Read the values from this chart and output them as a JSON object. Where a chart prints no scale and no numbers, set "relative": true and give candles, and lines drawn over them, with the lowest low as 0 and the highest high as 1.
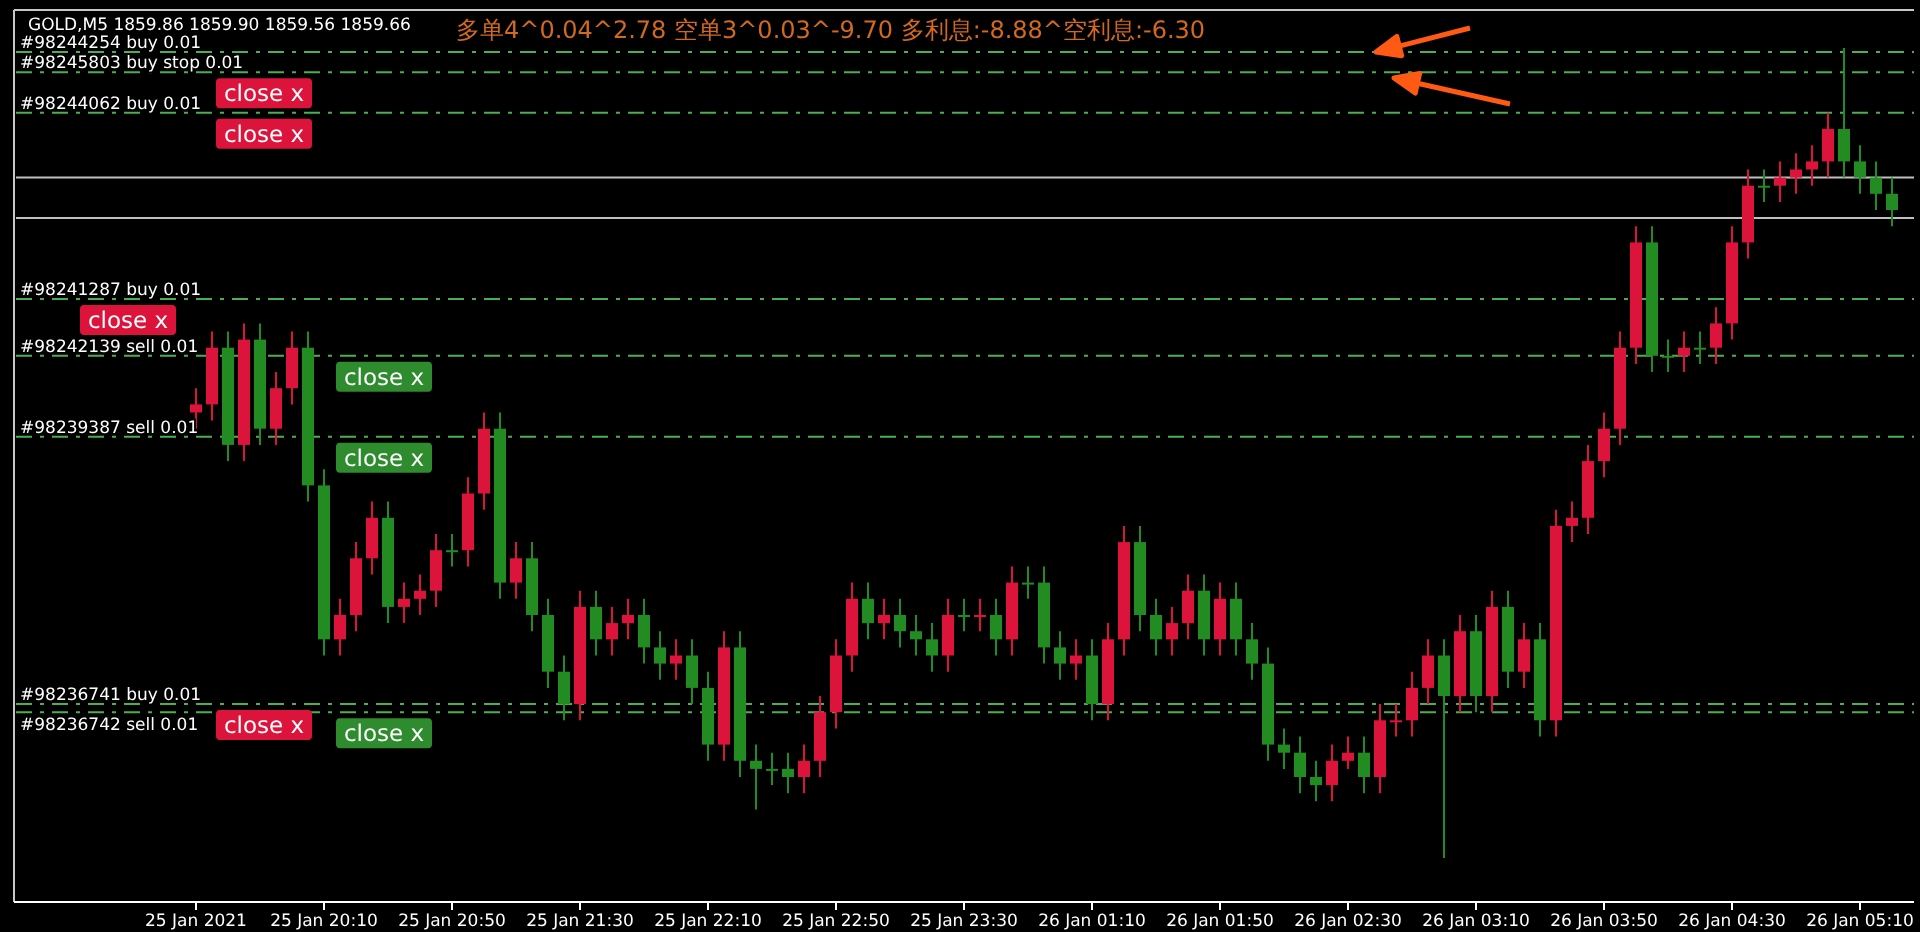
{
  "chart_data": {
    "type": "candlestick",
    "title": "GOLD,M5  1859.86 1859.90 1859.56 1859.66",
    "subtitle": "多单4^0.04^2.78  空单3^0.03^-9.70  多利息:-8.88^空利息:-6.30",
    "relative": true,
    "categories": [
      "25 Jan 2021",
      null,
      null,
      null,
      null,
      null,
      null,
      null,
      "25 Jan 20:10",
      null,
      null,
      null,
      null,
      null,
      null,
      null,
      "25 Jan 20:50",
      null,
      null,
      null,
      null,
      null,
      null,
      null,
      "25 Jan 21:30",
      null,
      null,
      null,
      null,
      null,
      null,
      null,
      "25 Jan 22:10",
      null,
      null,
      null,
      null,
      null,
      null,
      null,
      "25 Jan 22:50",
      null,
      null,
      null,
      null,
      null,
      null,
      null,
      "25 Jan 23:30",
      null,
      null,
      null,
      null,
      null,
      null,
      null,
      "26 Jan 01:10",
      null,
      null,
      null,
      null,
      null,
      null,
      null,
      "26 Jan 01:50",
      null,
      null,
      null,
      null,
      null,
      null,
      null,
      "26 Jan 02:30",
      null,
      null,
      null,
      null,
      null,
      null,
      null,
      "26 Jan 03:10",
      null,
      null,
      null,
      null,
      null,
      null,
      null,
      "26 Jan 03:50",
      null,
      null,
      null,
      null,
      null,
      null,
      null,
      "26 Jan 04:30",
      null,
      null,
      null,
      null,
      null,
      null,
      null,
      "26 Jan 05:10",
      null,
      null
    ],
    "ohlc": [
      [
        0.55,
        0.58,
        0.53,
        0.56
      ],
      [
        0.56,
        0.65,
        0.54,
        0.63
      ],
      [
        0.63,
        0.65,
        0.49,
        0.51
      ],
      [
        0.51,
        0.66,
        0.49,
        0.64
      ],
      [
        0.64,
        0.66,
        0.51,
        0.53
      ],
      [
        0.53,
        0.6,
        0.51,
        0.58
      ],
      [
        0.58,
        0.65,
        0.56,
        0.63
      ],
      [
        0.63,
        0.65,
        0.44,
        0.46
      ],
      [
        0.46,
        0.48,
        0.25,
        0.27
      ],
      [
        0.27,
        0.32,
        0.25,
        0.3
      ],
      [
        0.3,
        0.39,
        0.28,
        0.37
      ],
      [
        0.37,
        0.44,
        0.35,
        0.42
      ],
      [
        0.42,
        0.44,
        0.29,
        0.31
      ],
      [
        0.31,
        0.34,
        0.29,
        0.32
      ],
      [
        0.32,
        0.35,
        0.3,
        0.33
      ],
      [
        0.33,
        0.4,
        0.31,
        0.38
      ],
      [
        0.38,
        0.4,
        0.36,
        0.38
      ],
      [
        0.38,
        0.47,
        0.36,
        0.45
      ],
      [
        0.45,
        0.55,
        0.43,
        0.53
      ],
      [
        0.53,
        0.55,
        0.32,
        0.34
      ],
      [
        0.34,
        0.39,
        0.32,
        0.37
      ],
      [
        0.37,
        0.39,
        0.28,
        0.3
      ],
      [
        0.3,
        0.32,
        0.21,
        0.23
      ],
      [
        0.23,
        0.25,
        0.17,
        0.19
      ],
      [
        0.19,
        0.33,
        0.17,
        0.31
      ],
      [
        0.31,
        0.33,
        0.25,
        0.27
      ],
      [
        0.27,
        0.31,
        0.25,
        0.29
      ],
      [
        0.29,
        0.32,
        0.27,
        0.3
      ],
      [
        0.3,
        0.32,
        0.24,
        0.26
      ],
      [
        0.26,
        0.28,
        0.22,
        0.24
      ],
      [
        0.24,
        0.27,
        0.22,
        0.25
      ],
      [
        0.25,
        0.27,
        0.19,
        0.21
      ],
      [
        0.21,
        0.23,
        0.12,
        0.14
      ],
      [
        0.14,
        0.28,
        0.12,
        0.26
      ],
      [
        0.26,
        0.28,
        0.1,
        0.12
      ],
      [
        0.12,
        0.14,
        0.06,
        0.11
      ],
      [
        0.11,
        0.13,
        0.09,
        0.11
      ],
      [
        0.11,
        0.13,
        0.08,
        0.1
      ],
      [
        0.1,
        0.14,
        0.08,
        0.12
      ],
      [
        0.12,
        0.2,
        0.1,
        0.18
      ],
      [
        0.18,
        0.27,
        0.16,
        0.25
      ],
      [
        0.25,
        0.34,
        0.23,
        0.32
      ],
      [
        0.32,
        0.34,
        0.27,
        0.29
      ],
      [
        0.29,
        0.32,
        0.27,
        0.3
      ],
      [
        0.3,
        0.32,
        0.26,
        0.28
      ],
      [
        0.28,
        0.3,
        0.25,
        0.27
      ],
      [
        0.27,
        0.29,
        0.23,
        0.25
      ],
      [
        0.25,
        0.32,
        0.23,
        0.3
      ],
      [
        0.3,
        0.32,
        0.28,
        0.3
      ],
      [
        0.3,
        0.32,
        0.28,
        0.3
      ],
      [
        0.3,
        0.32,
        0.25,
        0.27
      ],
      [
        0.27,
        0.36,
        0.25,
        0.34
      ],
      [
        0.34,
        0.36,
        0.32,
        0.34
      ],
      [
        0.34,
        0.36,
        0.24,
        0.26
      ],
      [
        0.26,
        0.28,
        0.22,
        0.24
      ],
      [
        0.24,
        0.27,
        0.22,
        0.25
      ],
      [
        0.25,
        0.27,
        0.17,
        0.19
      ],
      [
        0.19,
        0.29,
        0.17,
        0.27
      ],
      [
        0.27,
        0.41,
        0.25,
        0.39
      ],
      [
        0.39,
        0.41,
        0.28,
        0.3
      ],
      [
        0.3,
        0.32,
        0.25,
        0.27
      ],
      [
        0.27,
        0.31,
        0.25,
        0.29
      ],
      [
        0.29,
        0.35,
        0.27,
        0.33
      ],
      [
        0.33,
        0.35,
        0.25,
        0.27
      ],
      [
        0.27,
        0.34,
        0.25,
        0.32
      ],
      [
        0.32,
        0.34,
        0.25,
        0.27
      ],
      [
        0.27,
        0.29,
        0.22,
        0.24
      ],
      [
        0.24,
        0.26,
        0.12,
        0.14
      ],
      [
        0.14,
        0.16,
        0.11,
        0.13
      ],
      [
        0.13,
        0.15,
        0.08,
        0.1
      ],
      [
        0.1,
        0.12,
        0.07,
        0.09
      ],
      [
        0.09,
        0.14,
        0.07,
        0.12
      ],
      [
        0.12,
        0.15,
        0.11,
        0.13
      ],
      [
        0.13,
        0.15,
        0.08,
        0.1
      ],
      [
        0.1,
        0.19,
        0.08,
        0.17
      ],
      [
        0.17,
        0.19,
        0.15,
        0.17
      ],
      [
        0.17,
        0.23,
        0.15,
        0.21
      ],
      [
        0.21,
        0.27,
        0.19,
        0.25
      ],
      [
        0.25,
        0.27,
        0.0,
        0.2
      ],
      [
        0.2,
        0.3,
        0.18,
        0.28
      ],
      [
        0.28,
        0.3,
        0.18,
        0.2
      ],
      [
        0.2,
        0.33,
        0.18,
        0.31
      ],
      [
        0.31,
        0.33,
        0.21,
        0.23
      ],
      [
        0.23,
        0.29,
        0.21,
        0.27
      ],
      [
        0.27,
        0.29,
        0.15,
        0.17
      ],
      [
        0.17,
        0.43,
        0.15,
        0.41
      ],
      [
        0.41,
        0.44,
        0.39,
        0.42
      ],
      [
        0.42,
        0.51,
        0.4,
        0.49
      ],
      [
        0.49,
        0.55,
        0.47,
        0.53
      ],
      [
        0.53,
        0.65,
        0.51,
        0.63
      ],
      [
        0.63,
        0.78,
        0.61,
        0.76
      ],
      [
        0.76,
        0.78,
        0.6,
        0.62
      ],
      [
        0.62,
        0.64,
        0.6,
        0.62
      ],
      [
        0.62,
        0.65,
        0.6,
        0.63
      ],
      [
        0.63,
        0.65,
        0.61,
        0.63
      ],
      [
        0.63,
        0.68,
        0.61,
        0.66
      ],
      [
        0.66,
        0.78,
        0.64,
        0.76
      ],
      [
        0.76,
        0.85,
        0.74,
        0.83
      ],
      [
        0.83,
        0.85,
        0.81,
        0.83
      ],
      [
        0.83,
        0.86,
        0.81,
        0.84
      ],
      [
        0.84,
        0.87,
        0.82,
        0.85
      ],
      [
        0.85,
        0.88,
        0.83,
        0.86
      ],
      [
        0.86,
        0.92,
        0.84,
        0.9
      ],
      [
        0.9,
        1.0,
        0.84,
        0.86
      ],
      [
        0.86,
        0.88,
        0.82,
        0.84
      ],
      [
        0.84,
        0.86,
        0.8,
        0.82
      ],
      [
        0.82,
        0.84,
        0.78,
        0.8
      ]
    ],
    "colors": [
      "#dc143c",
      "#dc143c",
      "#228b22",
      "#dc143c",
      "#228b22",
      "#dc143c",
      "#dc143c",
      "#228b22",
      "#228b22",
      "#dc143c",
      "#dc143c",
      "#dc143c",
      "#228b22",
      "#dc143c",
      "#dc143c",
      "#dc143c",
      "#228b22",
      "#dc143c",
      "#dc143c",
      "#228b22",
      "#dc143c",
      "#228b22",
      "#228b22",
      "#228b22",
      "#dc143c",
      "#228b22",
      "#dc143c",
      "#dc143c",
      "#228b22",
      "#228b22",
      "#dc143c",
      "#228b22",
      "#228b22",
      "#dc143c",
      "#228b22",
      "#228b22",
      "#228b22",
      "#228b22",
      "#dc143c",
      "#dc143c",
      "#dc143c",
      "#dc143c",
      "#228b22",
      "#dc143c",
      "#228b22",
      "#228b22",
      "#228b22",
      "#dc143c",
      "#228b22",
      "#dc143c",
      "#228b22",
      "#dc143c",
      "#228b22",
      "#228b22",
      "#228b22",
      "#dc143c",
      "#228b22",
      "#dc143c",
      "#dc143c",
      "#228b22",
      "#228b22",
      "#dc143c",
      "#dc143c",
      "#228b22",
      "#dc143c",
      "#228b22",
      "#228b22",
      "#228b22",
      "#228b22",
      "#228b22",
      "#228b22",
      "#dc143c",
      "#dc143c",
      "#228b22",
      "#dc143c",
      "#dc143c",
      "#dc143c",
      "#dc143c",
      "#228b22",
      "#dc143c",
      "#228b22",
      "#dc143c",
      "#228b22",
      "#dc143c",
      "#228b22",
      "#dc143c",
      "#dc143c",
      "#dc143c",
      "#dc143c",
      "#dc143c",
      "#dc143c",
      "#228b22",
      "#228b22",
      "#dc143c",
      "#228b22",
      "#dc143c",
      "#dc143c",
      "#dc143c",
      "#228b22",
      "#dc143c",
      "#dc143c",
      "#dc143c",
      "#dc143c",
      "#228b22",
      "#228b22",
      "#228b22",
      "#228b22"
    ],
    "ref_lines": [
      {
        "axis": "y",
        "value": 0.995,
        "label": "#98244254 buy 0.01",
        "color": "#4caf50",
        "line_style": "dashed"
      },
      {
        "axis": "y",
        "value": 0.97,
        "label": "#98245803 buy stop 0.01",
        "color": "#4caf50",
        "line_style": "dashed"
      },
      {
        "axis": "y",
        "value": 0.92,
        "label": "#98244062 buy 0.01",
        "color": "#4caf50",
        "line_style": "dashed"
      },
      {
        "axis": "y",
        "value": 0.84,
        "label": null,
        "color": "#c0c0c0",
        "line_style": "solid"
      },
      {
        "axis": "y",
        "value": 0.79,
        "label": null,
        "color": "#c0c0c0",
        "line_style": "solid"
      },
      {
        "axis": "y",
        "value": 0.69,
        "label": "#98241287 buy 0.01",
        "color": "#4caf50",
        "line_style": "dashed"
      },
      {
        "axis": "y",
        "value": 0.62,
        "label": "#98242139 sell 0.01",
        "color": "#4caf50",
        "line_style": "dashed"
      },
      {
        "axis": "y",
        "value": 0.52,
        "label": "#98239387 sell 0.01",
        "color": "#4caf50",
        "line_style": "dashed"
      },
      {
        "axis": "y",
        "value": 0.19,
        "label": "#98236741 buy 0.01",
        "color": "#4caf50",
        "line_style": "dashed"
      },
      {
        "axis": "y",
        "value": 0.18,
        "label": "#98236742 sell 0.01",
        "color": "#4caf50",
        "line_style": "dashed"
      }
    ],
    "annotations": [
      "close x",
      "close x",
      "close x",
      "close x",
      "close x",
      "close x",
      "close x"
    ]
  }
}
